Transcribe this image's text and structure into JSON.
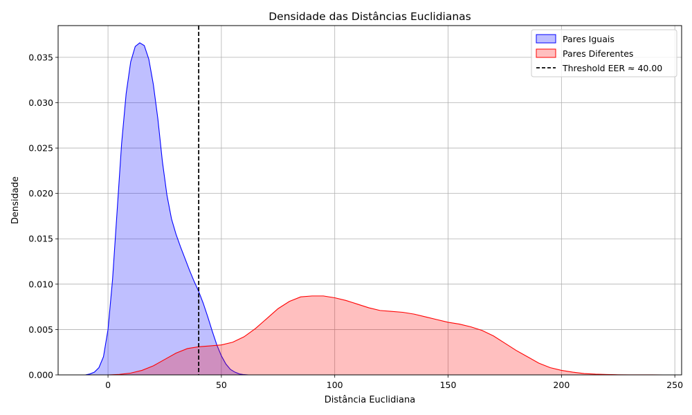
{
  "chart_data": {
    "type": "area",
    "title": "Densidade das Distâncias Euclidianas",
    "xlabel": "Distância Euclidiana",
    "ylabel": "Densidade",
    "xlim": [
      -22,
      253
    ],
    "ylim": [
      0,
      0.0385
    ],
    "x_ticks": [
      0,
      50,
      100,
      150,
      200,
      250
    ],
    "x_tick_labels": [
      "0",
      "50",
      "100",
      "150",
      "200",
      "250"
    ],
    "y_ticks": [
      0,
      0.005,
      0.01,
      0.015,
      0.02,
      0.025,
      0.03,
      0.035
    ],
    "y_tick_labels": [
      "0.000",
      "0.005",
      "0.010",
      "0.015",
      "0.020",
      "0.025",
      "0.030",
      "0.035"
    ],
    "grid": true,
    "legend_position": "top-right",
    "series": [
      {
        "name": "Pares Iguais",
        "color": "#0000ff",
        "fill": "#bfbfff",
        "x": [
          -10,
          -8,
          -6,
          -4,
          -2,
          0,
          2,
          4,
          6,
          8,
          10,
          12,
          14,
          16,
          18,
          20,
          22,
          24,
          26,
          28,
          30,
          32,
          34,
          36,
          38,
          40,
          42,
          44,
          46,
          48,
          50,
          52,
          54,
          56,
          58,
          60,
          62
        ],
        "y": [
          0,
          0.0001,
          0.0003,
          0.0008,
          0.002,
          0.005,
          0.0105,
          0.018,
          0.0255,
          0.031,
          0.0345,
          0.0362,
          0.0366,
          0.0363,
          0.0348,
          0.032,
          0.0282,
          0.0235,
          0.0198,
          0.0172,
          0.0155,
          0.0141,
          0.0128,
          0.0115,
          0.0103,
          0.0092,
          0.0079,
          0.0064,
          0.0048,
          0.0033,
          0.0021,
          0.0012,
          0.0006,
          0.0003,
          0.0001,
          3e-05,
          0
        ]
      },
      {
        "name": "Pares Diferentes",
        "color": "#ff0000",
        "fill": "#ffbfbf",
        "x": [
          0,
          5,
          10,
          15,
          20,
          25,
          30,
          35,
          40,
          45,
          50,
          55,
          60,
          65,
          70,
          75,
          80,
          85,
          90,
          95,
          100,
          105,
          110,
          115,
          120,
          125,
          130,
          135,
          140,
          145,
          150,
          155,
          160,
          165,
          170,
          175,
          180,
          185,
          190,
          195,
          200,
          205,
          210,
          215,
          220,
          225,
          230,
          235,
          240,
          245,
          250
        ],
        "y": [
          0,
          5e-05,
          0.0002,
          0.0005,
          0.001,
          0.0017,
          0.0024,
          0.0029,
          0.0031,
          0.0032,
          0.0033,
          0.0036,
          0.0042,
          0.0051,
          0.0062,
          0.0073,
          0.0081,
          0.0086,
          0.0087,
          0.0087,
          0.0085,
          0.0082,
          0.0078,
          0.0074,
          0.0071,
          0.007,
          0.0069,
          0.0067,
          0.0064,
          0.0061,
          0.0058,
          0.0056,
          0.0053,
          0.0049,
          0.0043,
          0.0035,
          0.0027,
          0.002,
          0.0013,
          0.0008,
          0.0005,
          0.0003,
          0.00015,
          8e-05,
          4e-05,
          2e-05,
          1e-05,
          5e-06,
          2e-06,
          1e-06,
          0
        ]
      }
    ],
    "threshold": {
      "label": "Threshold EER ≈ 40.00",
      "x": 40,
      "color": "#000000",
      "style": "dashed"
    }
  }
}
